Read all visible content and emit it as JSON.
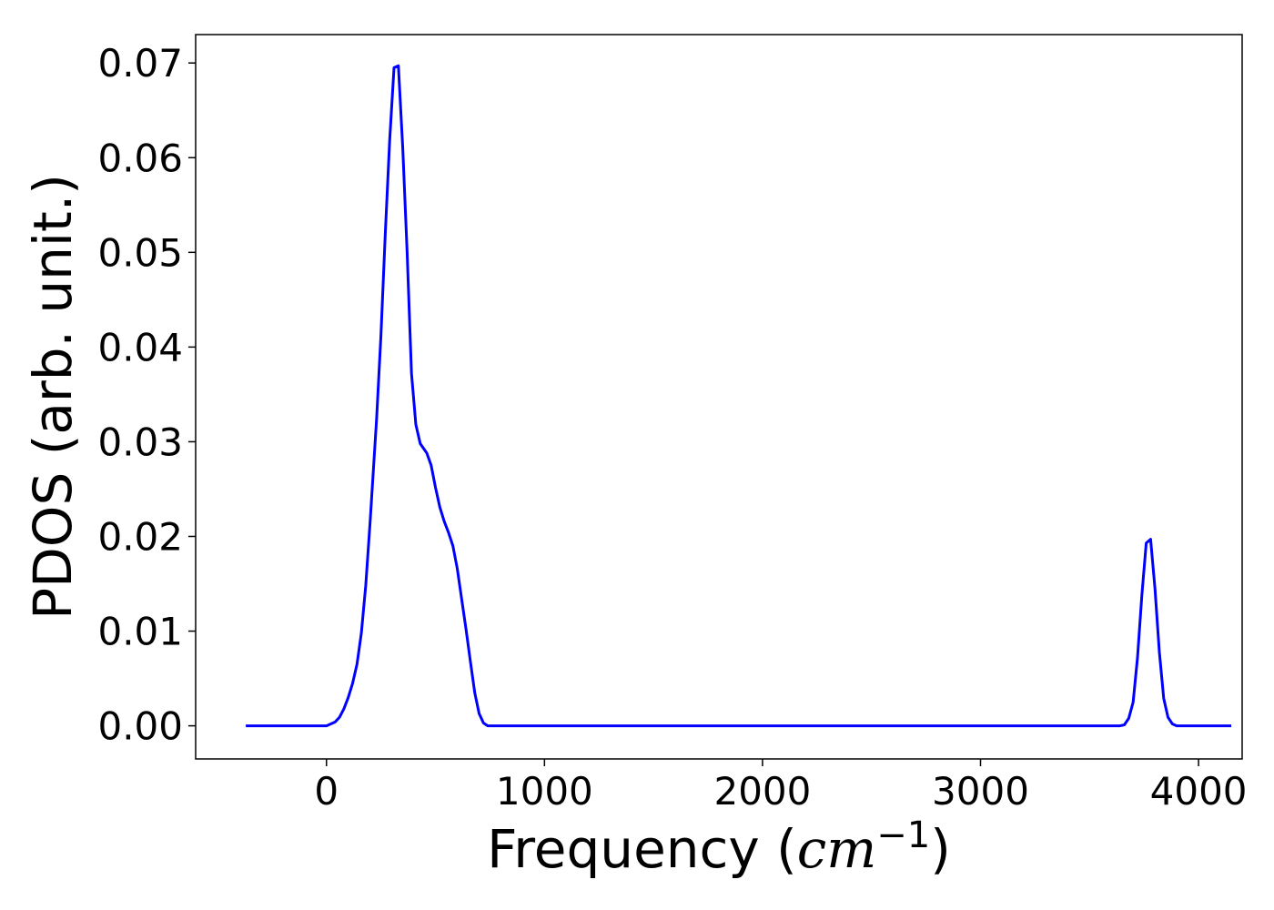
{
  "chart_data": {
    "type": "line",
    "title": "",
    "xlabel": {
      "prefix": "Frequency (",
      "var": "cm",
      "exp": "−1",
      "suffix": ")"
    },
    "ylabel": "PDOS (arb. unit.)",
    "xlim": [
      -600,
      4200
    ],
    "ylim": [
      -0.0035,
      0.073
    ],
    "xticks": [
      0,
      1000,
      2000,
      3000,
      4000
    ],
    "xtick_labels": [
      "0",
      "1000",
      "2000",
      "3000",
      "4000"
    ],
    "yticks": [
      0.0,
      0.01,
      0.02,
      0.03,
      0.04,
      0.05,
      0.06,
      0.07
    ],
    "ytick_labels": [
      "0.00",
      "0.01",
      "0.02",
      "0.03",
      "0.04",
      "0.05",
      "0.06",
      "0.07"
    ],
    "grid": false,
    "legend": "none",
    "series": [
      {
        "color": "#0000ff",
        "x": [
          -370,
          0,
          40,
          60,
          80,
          100,
          120,
          140,
          160,
          180,
          200,
          230,
          250,
          270,
          290,
          310,
          330,
          350,
          370,
          390,
          410,
          430,
          460,
          480,
          500,
          520,
          540,
          560,
          580,
          600,
          620,
          640,
          660,
          680,
          700,
          720,
          740,
          760,
          780,
          800,
          1000,
          2000,
          3000,
          3600,
          3640,
          3660,
          3680,
          3700,
          3720,
          3740,
          3760,
          3780,
          3800,
          3820,
          3840,
          3860,
          3880,
          3900,
          4000,
          4150
        ],
        "y": [
          0.0,
          0.0,
          0.0004,
          0.0009,
          0.0018,
          0.003,
          0.0045,
          0.0065,
          0.0098,
          0.0148,
          0.0215,
          0.0325,
          0.0412,
          0.052,
          0.0618,
          0.0695,
          0.0697,
          0.061,
          0.05,
          0.0372,
          0.0318,
          0.0298,
          0.0288,
          0.0275,
          0.0252,
          0.0231,
          0.0216,
          0.0204,
          0.019,
          0.0166,
          0.0134,
          0.0102,
          0.0068,
          0.0035,
          0.0013,
          0.0003,
          0.0,
          0.0,
          0.0,
          0.0,
          0.0,
          0.0,
          0.0,
          0.0,
          0.0,
          0.0001,
          0.0008,
          0.0025,
          0.0072,
          0.0138,
          0.0193,
          0.0197,
          0.0145,
          0.0078,
          0.0029,
          0.0009,
          0.0002,
          0.0,
          0.0,
          0.0
        ]
      }
    ]
  }
}
